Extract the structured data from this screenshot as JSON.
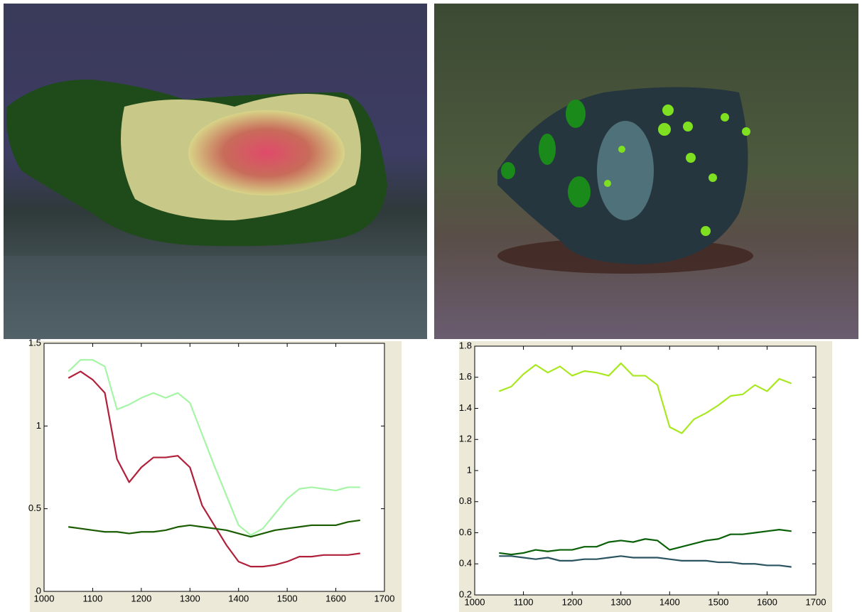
{
  "chart_data": [
    {
      "type": "line",
      "x": [
        1050,
        1075,
        1100,
        1125,
        1150,
        1175,
        1200,
        1225,
        1250,
        1275,
        1300,
        1325,
        1350,
        1375,
        1400,
        1425,
        1450,
        1475,
        1500,
        1525,
        1550,
        1575,
        1600,
        1625,
        1650
      ],
      "series": [
        {
          "color": "#a6f5a6",
          "values": [
            1.33,
            1.4,
            1.4,
            1.36,
            1.1,
            1.13,
            1.17,
            1.2,
            1.17,
            1.2,
            1.14,
            0.95,
            0.76,
            0.58,
            0.4,
            0.34,
            0.38,
            0.47,
            0.56,
            0.62,
            0.63,
            0.62,
            0.61,
            0.63,
            0.63
          ]
        },
        {
          "color": "#b0203a",
          "values": [
            1.29,
            1.33,
            1.28,
            1.2,
            0.8,
            0.66,
            0.75,
            0.81,
            0.81,
            0.82,
            0.75,
            0.52,
            0.4,
            0.28,
            0.18,
            0.15,
            0.15,
            0.16,
            0.18,
            0.21,
            0.21,
            0.22,
            0.22,
            0.22,
            0.23
          ]
        },
        {
          "color": "#1a5c00",
          "values": [
            0.39,
            0.38,
            0.37,
            0.36,
            0.36,
            0.35,
            0.36,
            0.36,
            0.37,
            0.39,
            0.4,
            0.39,
            0.38,
            0.37,
            0.35,
            0.33,
            0.35,
            0.37,
            0.38,
            0.39,
            0.4,
            0.4,
            0.4,
            0.42,
            0.43
          ]
        }
      ],
      "xlim": [
        1000,
        1700
      ],
      "xticks": [
        1000,
        1100,
        1200,
        1300,
        1400,
        1500,
        1600,
        1700
      ],
      "ylim": [
        0,
        1.5
      ],
      "yticks": [
        0,
        0.5,
        1,
        1.5
      ],
      "grid": false
    },
    {
      "type": "line",
      "x": [
        1050,
        1075,
        1100,
        1125,
        1150,
        1175,
        1200,
        1225,
        1250,
        1275,
        1300,
        1325,
        1350,
        1375,
        1400,
        1425,
        1450,
        1475,
        1500,
        1525,
        1550,
        1575,
        1600,
        1625,
        1650
      ],
      "series": [
        {
          "color": "#a8e81e",
          "values": [
            1.51,
            1.54,
            1.62,
            1.68,
            1.63,
            1.67,
            1.61,
            1.64,
            1.63,
            1.61,
            1.69,
            1.61,
            1.61,
            1.55,
            1.28,
            1.24,
            1.33,
            1.37,
            1.42,
            1.48,
            1.49,
            1.55,
            1.51,
            1.59,
            1.56
          ]
        },
        {
          "color": "#0a6008",
          "values": [
            0.47,
            0.46,
            0.47,
            0.49,
            0.48,
            0.49,
            0.49,
            0.51,
            0.51,
            0.54,
            0.55,
            0.54,
            0.56,
            0.55,
            0.49,
            0.51,
            0.53,
            0.55,
            0.56,
            0.59,
            0.59,
            0.6,
            0.61,
            0.62,
            0.61
          ]
        },
        {
          "color": "#2a5560",
          "values": [
            0.45,
            0.45,
            0.44,
            0.43,
            0.44,
            0.42,
            0.42,
            0.43,
            0.43,
            0.44,
            0.45,
            0.44,
            0.44,
            0.44,
            0.43,
            0.42,
            0.42,
            0.42,
            0.41,
            0.41,
            0.4,
            0.4,
            0.39,
            0.39,
            0.38
          ]
        }
      ],
      "xlim": [
        1000,
        1700
      ],
      "xticks": [
        1000,
        1100,
        1200,
        1300,
        1400,
        1500,
        1600,
        1700
      ],
      "ylim": [
        0.2,
        1.8
      ],
      "yticks": [
        0.2,
        0.4,
        0.6,
        0.8,
        1,
        1.2,
        1.4,
        1.6,
        1.8
      ],
      "grid": false
    }
  ]
}
